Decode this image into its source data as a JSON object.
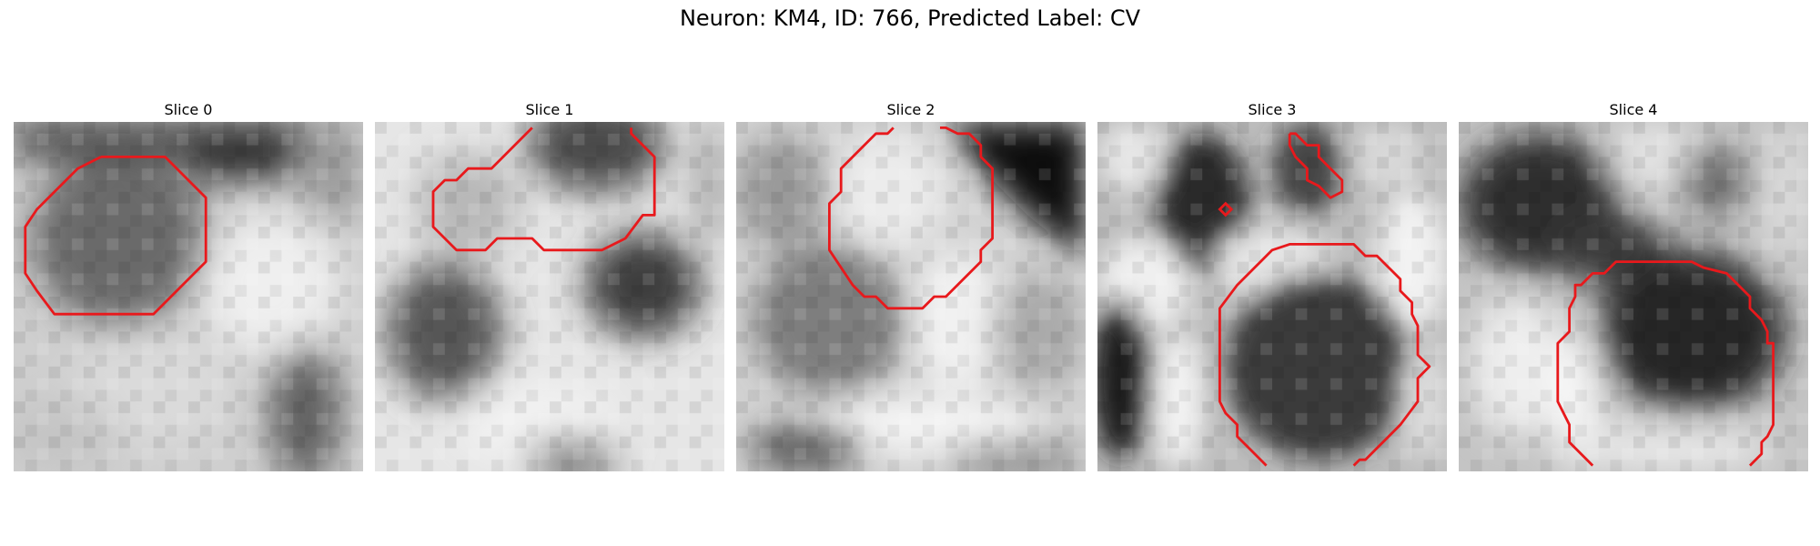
{
  "figure": {
    "title": "Neuron: KM4, ID: 766, Predicted Label: CV",
    "contour_color": "#e8191c"
  },
  "panels": [
    {
      "title": "Slice 0"
    },
    {
      "title": "Slice 1"
    },
    {
      "title": "Slice 2"
    },
    {
      "title": "Slice 3"
    },
    {
      "title": "Slice 4"
    }
  ]
}
